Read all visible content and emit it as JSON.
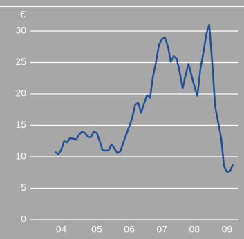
{
  "chart_data": {
    "type": "line",
    "unit": "€",
    "categories": [
      null,
      null,
      "04",
      null,
      null,
      null,
      null,
      null,
      null,
      null,
      null,
      null,
      null,
      null,
      "05",
      null,
      null,
      null,
      null,
      null,
      null,
      null,
      null,
      null,
      null,
      "06",
      null,
      null,
      null,
      null,
      null,
      null,
      null,
      null,
      null,
      null,
      "07",
      null,
      null,
      null,
      null,
      null,
      null,
      null,
      null,
      null,
      null,
      "08",
      null,
      null,
      null,
      null,
      null,
      null,
      null,
      null,
      null,
      null,
      "09",
      null,
      null
    ],
    "series": [
      {
        "color": "#1f4e96",
        "values": [
          10.8,
          10.4,
          11.1,
          12.5,
          12.3,
          13.0,
          12.9,
          12.7,
          13.5,
          14.0,
          13.8,
          13.2,
          13.1,
          14.0,
          13.8,
          12.5,
          11.0,
          11.0,
          11.0,
          12.0,
          11.3,
          10.6,
          10.9,
          12.3,
          13.6,
          14.8,
          16.3,
          18.3,
          18.6,
          17.0,
          18.5,
          19.8,
          19.4,
          22.8,
          25.0,
          27.8,
          28.7,
          29.0,
          27.6,
          25.1,
          26.0,
          25.6,
          23.5,
          20.9,
          23.0,
          24.8,
          23.0,
          21.2,
          19.7,
          24.0,
          26.5,
          29.5,
          31.0,
          25.0,
          18.0,
          15.5,
          13.0,
          8.5,
          7.6,
          7.7,
          8.8
        ]
      }
    ],
    "ylim": [
      0,
      30
    ],
    "yticks": [
      0,
      5,
      10,
      15,
      20,
      25,
      30
    ],
    "grid": true
  }
}
